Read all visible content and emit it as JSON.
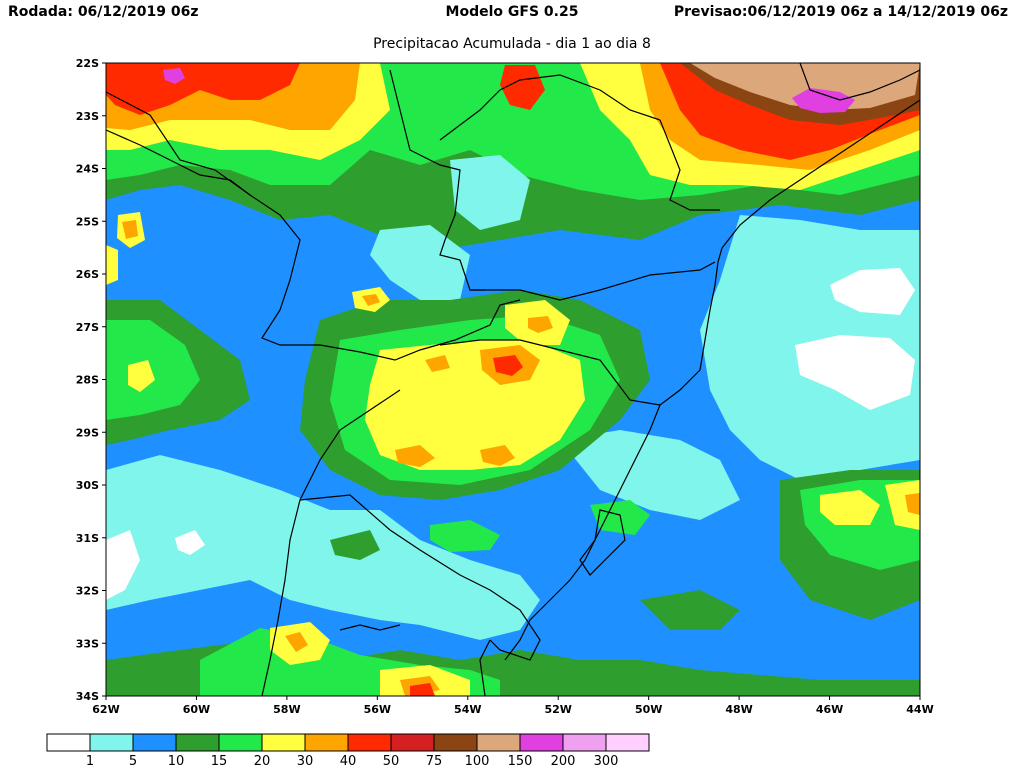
{
  "header": {
    "rodada_label": "Rodada:",
    "rodada_value": "06/12/2019 06z",
    "model": "Modelo GFS 0.25",
    "previsao_label": "Previsao:",
    "previsao_value": "06/12/2019 06z a 14/12/2019 06z",
    "subtitle": "Precipitacao Acumulada - dia 1 ao dia 8"
  },
  "map": {
    "lat_ticks": [
      "22S",
      "23S",
      "24S",
      "25S",
      "26S",
      "27S",
      "28S",
      "29S",
      "30S",
      "31S",
      "32S",
      "33S",
      "34S"
    ],
    "lon_ticks": [
      "62W",
      "60W",
      "58W",
      "56W",
      "54W",
      "52W",
      "50W",
      "48W",
      "46W",
      "44W"
    ],
    "lat_range": [
      -34,
      -22
    ],
    "lon_range": [
      -62,
      -44
    ]
  },
  "legend": {
    "colors": [
      "#ffffff",
      "#7ff5ec",
      "#1e90ff",
      "#2e9e2e",
      "#22e84a",
      "#ffff40",
      "#ffa500",
      "#ff2a00",
      "#d42020",
      "#8b4513",
      "#dca77a",
      "#e040e0",
      "#f0a0f0",
      "#ffd0ff"
    ],
    "labels": [
      "1",
      "5",
      "10",
      "15",
      "20",
      "30",
      "40",
      "50",
      "75",
      "100",
      "150",
      "200",
      "300"
    ]
  }
}
